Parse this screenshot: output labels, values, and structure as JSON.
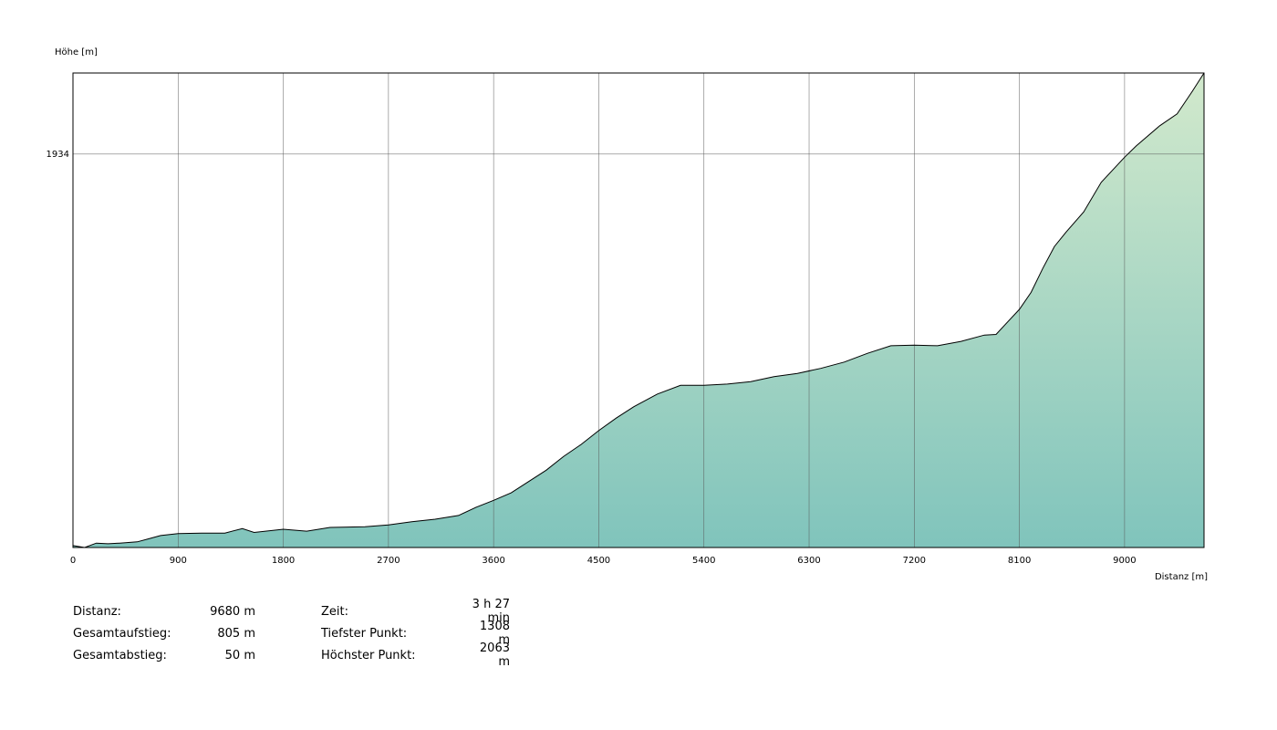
{
  "chart_data": {
    "type": "area",
    "y_label": "Höhe [m]",
    "x_label": "Distanz [m]",
    "x": [
      0,
      100,
      200,
      300,
      400,
      550,
      650,
      750,
      900,
      1100,
      1300,
      1450,
      1550,
      1800,
      2000,
      2200,
      2500,
      2700,
      2900,
      3100,
      3300,
      3450,
      3600,
      3750,
      3900,
      4050,
      4200,
      4350,
      4500,
      4650,
      4800,
      5000,
      5200,
      5400,
      5600,
      5800,
      6000,
      6200,
      6400,
      6600,
      6800,
      7000,
      7200,
      7400,
      7600,
      7800,
      7900,
      8000,
      8100,
      8200,
      8300,
      8400,
      8500,
      8650,
      8800,
      9000,
      9100,
      9300,
      9450,
      9580,
      9680
    ],
    "values": [
      1311,
      1308,
      1315,
      1314,
      1315,
      1317,
      1322,
      1327,
      1330,
      1331,
      1331,
      1338,
      1332,
      1337,
      1334,
      1340,
      1341,
      1344,
      1349,
      1353,
      1359,
      1372,
      1383,
      1395,
      1413,
      1431,
      1453,
      1472,
      1494,
      1514,
      1532,
      1552,
      1566,
      1566,
      1568,
      1572,
      1580,
      1585,
      1593,
      1603,
      1617,
      1629,
      1630,
      1629,
      1636,
      1646,
      1647,
      1667,
      1687,
      1714,
      1752,
      1787,
      1810,
      1842,
      1889,
      1929,
      1947,
      1979,
      1998,
      2034,
      2063
    ],
    "color": "#000000",
    "xlim": [
      0,
      9680
    ],
    "xticks": [
      0,
      900,
      1800,
      2700,
      3600,
      4500,
      5400,
      6300,
      7200,
      8100,
      9000
    ],
    "ylim": [
      1308,
      2063
    ],
    "yticks": [
      1934
    ],
    "grid": true
  },
  "stats": [
    {
      "label": "Distanz:",
      "value": "9680 m"
    },
    {
      "label": "Gesamtaufstieg:",
      "value": "805 m"
    },
    {
      "label": "Gesamtabstieg:",
      "value": "50 m"
    },
    {
      "label": "Zeit:",
      "value": "3 h 27 min"
    },
    {
      "label": "Tiefster Punkt:",
      "value": "1308 m"
    },
    {
      "label": "Höchster Punkt:",
      "value": "2063 m"
    }
  ]
}
